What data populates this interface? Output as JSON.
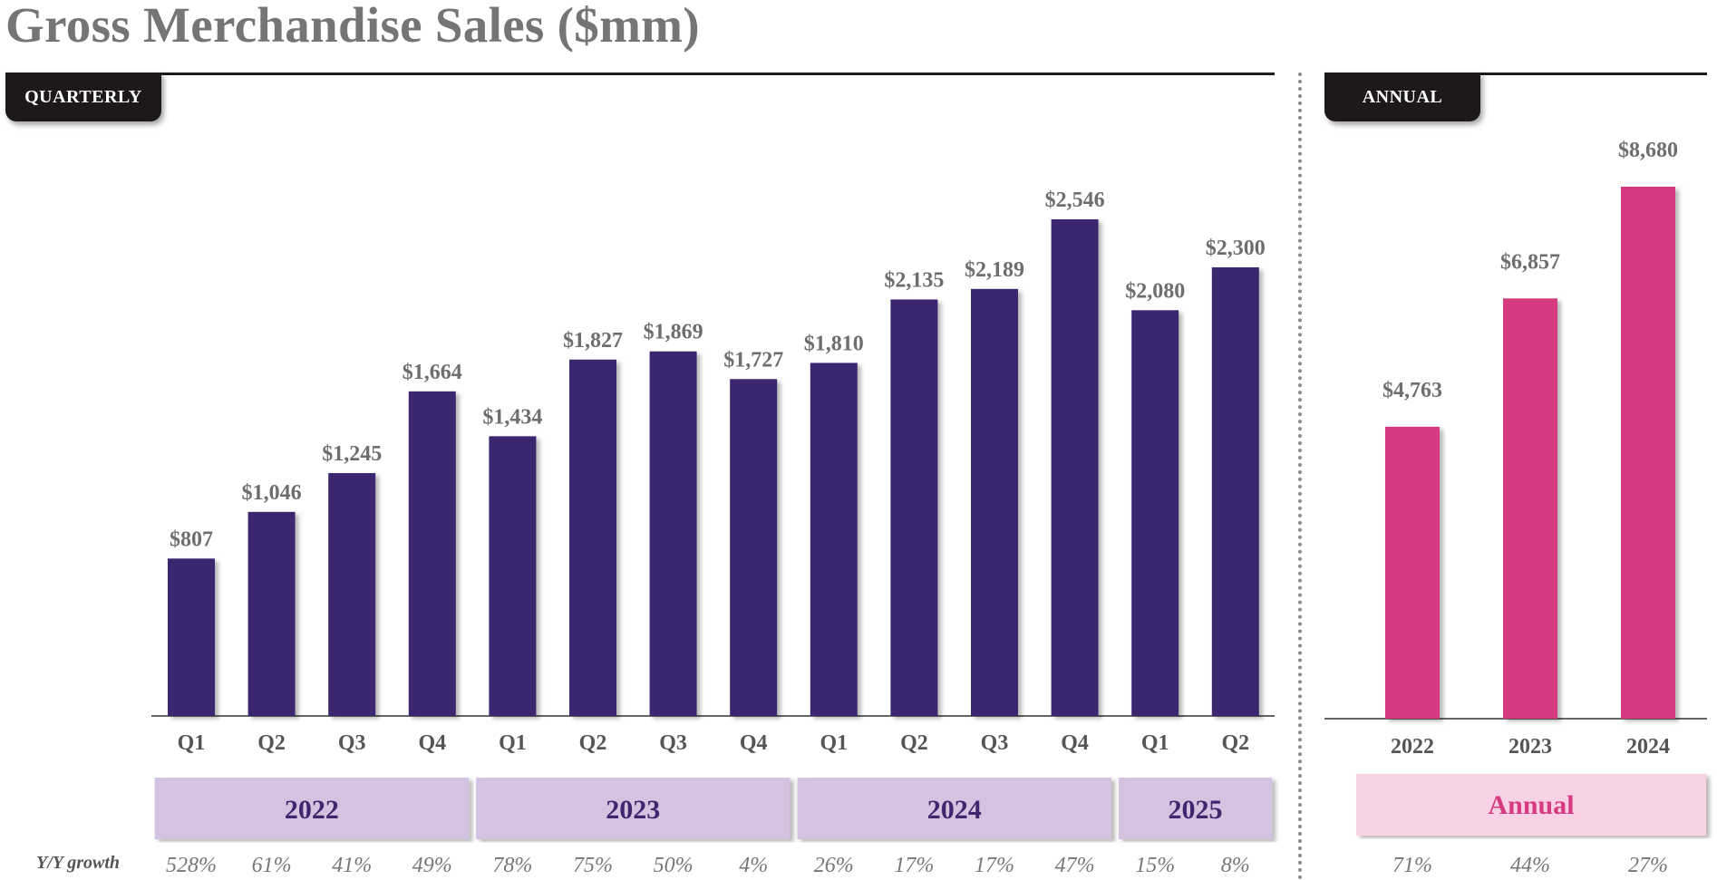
{
  "title": "Gross Merchandise Sales ($mm)",
  "tabs": {
    "quarterly": "QUARTERLY",
    "annual": "ANNUAL"
  },
  "colors": {
    "quarterly_bar": "#3e2870",
    "annual_bar": "#d63a80",
    "year_box": "#d4c3e0",
    "annual_box": "#f8d2e4"
  },
  "growth_label": "Y/Y growth",
  "chart_data": [
    {
      "type": "bar",
      "name": "quarterly",
      "title": "Gross Merchandise Sales ($mm)",
      "categories": [
        "Q1",
        "Q2",
        "Q3",
        "Q4",
        "Q1",
        "Q2",
        "Q3",
        "Q4",
        "Q1",
        "Q2",
        "Q3",
        "Q4",
        "Q1",
        "Q2"
      ],
      "values": [
        807,
        1046,
        1245,
        1664,
        1434,
        1827,
        1869,
        1727,
        1810,
        2135,
        2189,
        2546,
        2080,
        2300
      ],
      "labels": [
        "$807",
        "$1,046",
        "$1,245",
        "$1,664",
        "$1,434",
        "$1,827",
        "$1,869",
        "$1,727",
        "$1,810",
        "$2,135",
        "$2,189",
        "$2,546",
        "$2,080",
        "$2,300"
      ],
      "years": [
        {
          "label": "2022",
          "count": 4
        },
        {
          "label": "2023",
          "count": 4
        },
        {
          "label": "2024",
          "count": 4
        },
        {
          "label": "2025",
          "count": 2
        }
      ],
      "growth": [
        "528%",
        "61%",
        "41%",
        "49%",
        "78%",
        "75%",
        "50%",
        "4%",
        "26%",
        "17%",
        "17%",
        "47%",
        "15%",
        "8%"
      ],
      "ylim": [
        0,
        2546
      ]
    },
    {
      "type": "bar",
      "name": "annual",
      "categories": [
        "2022",
        "2023",
        "2024"
      ],
      "values": [
        4763,
        6857,
        8680
      ],
      "labels": [
        "$4,763",
        "$6,857",
        "$8,680"
      ],
      "group_label": "Annual",
      "growth": [
        "71%",
        "44%",
        "27%"
      ],
      "ylim": [
        0,
        8680
      ]
    }
  ]
}
